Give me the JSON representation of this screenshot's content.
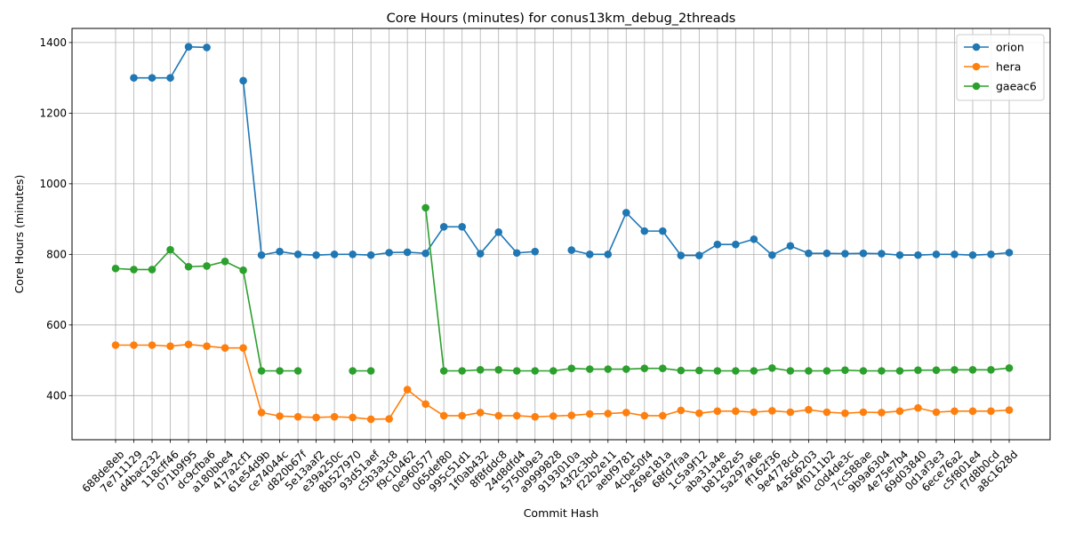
{
  "chart_data": {
    "type": "line",
    "title": "Core Hours (minutes) for conus13km_debug_2threads",
    "xlabel": "Commit Hash",
    "ylabel": "Core Hours (minutes)",
    "ylim": [
      275,
      1440
    ],
    "yticks": [
      400,
      600,
      800,
      1000,
      1200,
      1400
    ],
    "grid": true,
    "legend_position": "top-right",
    "categories": [
      "688de8eb",
      "7e711129",
      "d4bac232",
      "118cff46",
      "071b9f95",
      "dc9cfba6",
      "a180bbe4",
      "417a2cf1",
      "61e54d9b",
      "ce74044c",
      "d820b67f",
      "5e13aaf2",
      "e39a250c",
      "8b527970",
      "93d51aef",
      "c5b3a3c8",
      "f9c10462",
      "0e960577",
      "065def80",
      "995c51d1",
      "1f0ab432",
      "8f8fddc8",
      "24d8dfd4",
      "5750b9e3",
      "a9999828",
      "9193010a",
      "43f2c3bd",
      "f22b2e11",
      "aebf9781",
      "4cbe50f4",
      "269e181a",
      "68fd7faa",
      "1c5a9f12",
      "aba31a4e",
      "b81282e5",
      "5a297a6e",
      "ff162f36",
      "9e4778cd",
      "4a566203",
      "4f0111b2",
      "c0d4de3c",
      "7cc588ae",
      "9b9a6304",
      "4e75e7b4",
      "69d03840",
      "0d1af3e3",
      "6ece76a2",
      "c5f801e4",
      "f7d8b0cd",
      "a8c1628d"
    ],
    "series": [
      {
        "name": "orion",
        "color": "#1f77b4",
        "values": [
          null,
          1300,
          1300,
          1300,
          1388,
          1386,
          null,
          1292,
          798,
          808,
          800,
          798,
          800,
          800,
          798,
          805,
          806,
          803,
          878,
          878,
          802,
          863,
          804,
          808,
          null,
          812,
          800,
          800,
          918,
          866,
          866,
          797,
          797,
          828,
          828,
          843,
          798,
          824,
          803,
          803,
          802,
          803,
          802,
          798,
          798,
          800,
          800,
          798,
          800,
          805
        ]
      },
      {
        "name": "hera",
        "color": "#ff7f0e",
        "values": [
          543,
          543,
          543,
          540,
          545,
          540,
          535,
          535,
          352,
          342,
          340,
          338,
          340,
          338,
          333,
          334,
          417,
          376,
          343,
          343,
          352,
          343,
          343,
          340,
          342,
          344,
          348,
          349,
          352,
          343,
          343,
          358,
          350,
          356,
          356,
          353,
          357,
          353,
          360,
          353,
          350,
          353,
          352,
          356,
          365,
          353,
          356,
          356,
          356,
          359
        ]
      },
      {
        "name": "gaeac6",
        "color": "#2ca02c",
        "values": [
          760,
          757,
          757,
          813,
          765,
          767,
          780,
          755,
          470,
          470,
          470,
          null,
          null,
          470,
          470,
          null,
          null,
          932,
          470,
          470,
          473,
          473,
          470,
          470,
          470,
          477,
          475,
          475,
          475,
          477,
          477,
          471,
          471,
          470,
          470,
          470,
          478,
          470,
          470,
          470,
          472,
          470,
          470,
          470,
          472,
          472,
          473,
          473,
          473,
          478
        ]
      }
    ]
  }
}
